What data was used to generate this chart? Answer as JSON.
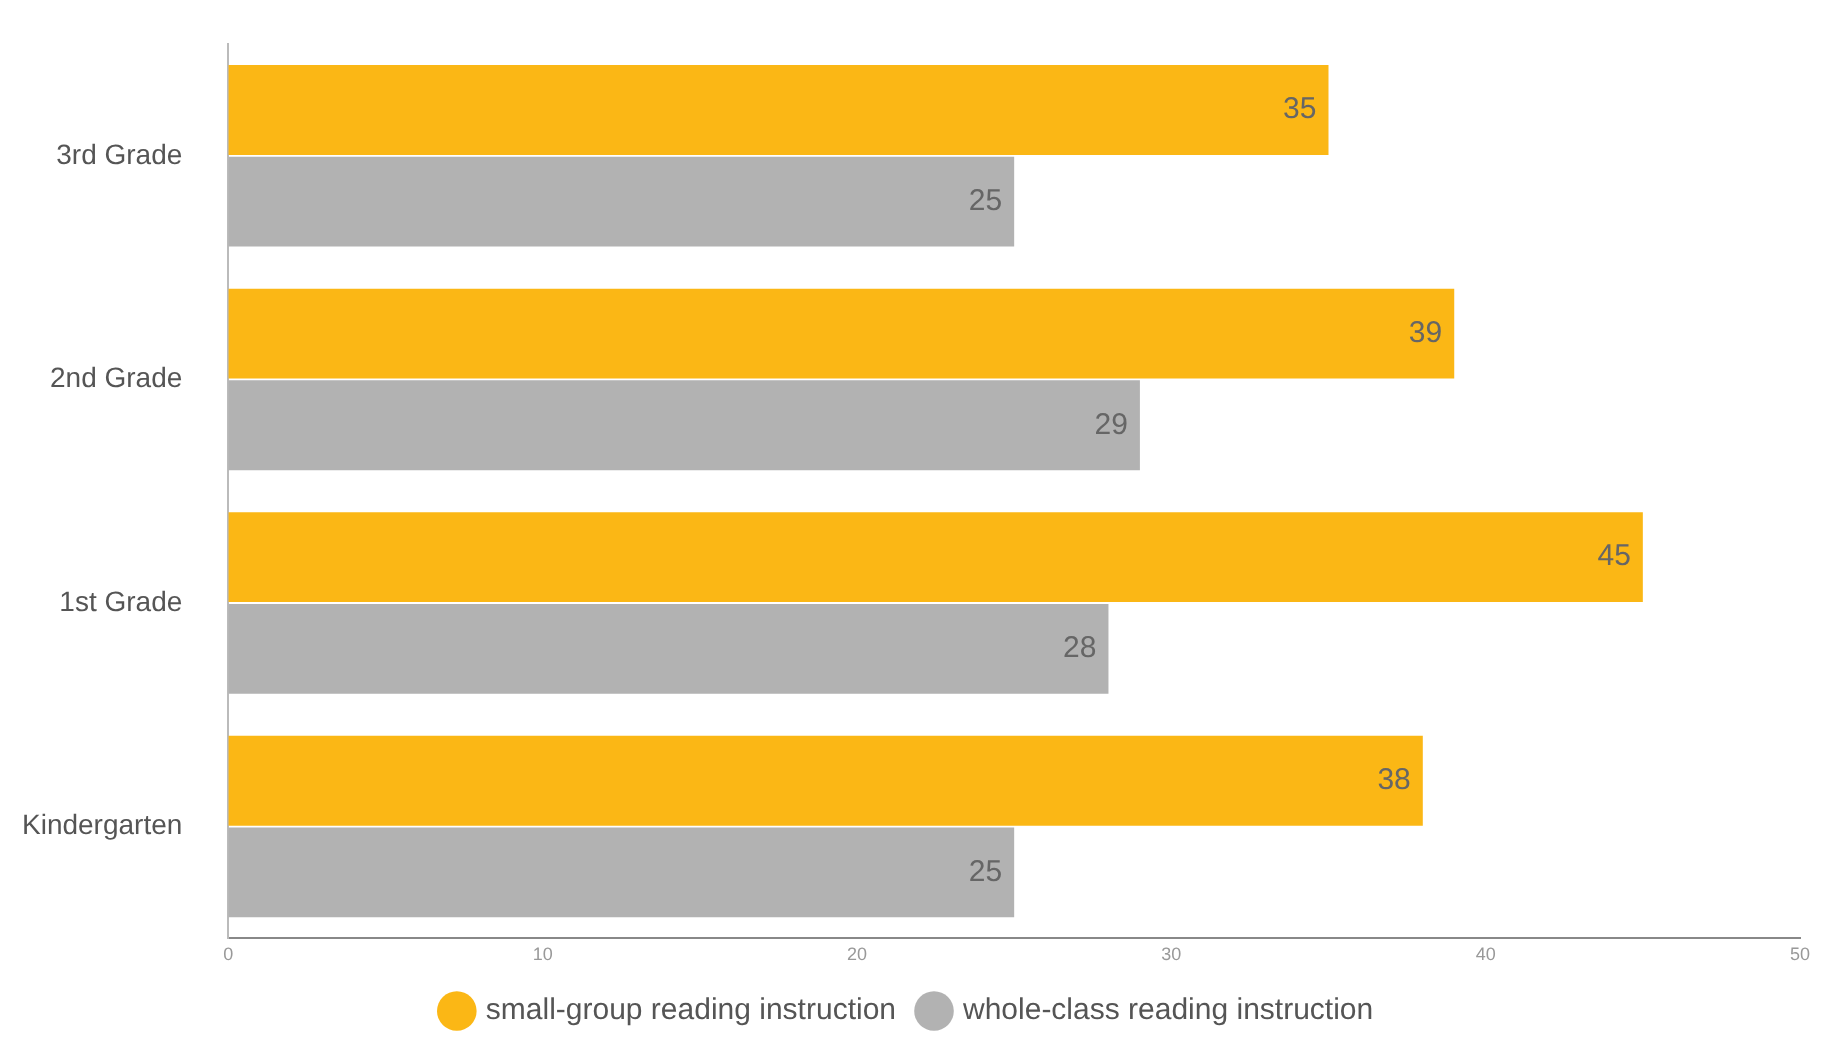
{
  "chart_data": {
    "type": "bar",
    "orientation": "horizontal",
    "categories": [
      "3rd Grade",
      "2nd Grade",
      "1st Grade",
      "Kindergarten"
    ],
    "series": [
      {
        "name": "small-group reading instruction",
        "color": "#fbb715",
        "values": [
          35,
          39,
          45,
          38
        ]
      },
      {
        "name": "whole-class reading instruction",
        "color": "#b2b2b2",
        "values": [
          25,
          29,
          28,
          25
        ]
      }
    ],
    "xlim": [
      0,
      50
    ],
    "xticks": [
      0,
      10,
      20,
      30,
      40,
      50
    ],
    "grid": false,
    "legend": "bottom",
    "data_labels": true
  }
}
